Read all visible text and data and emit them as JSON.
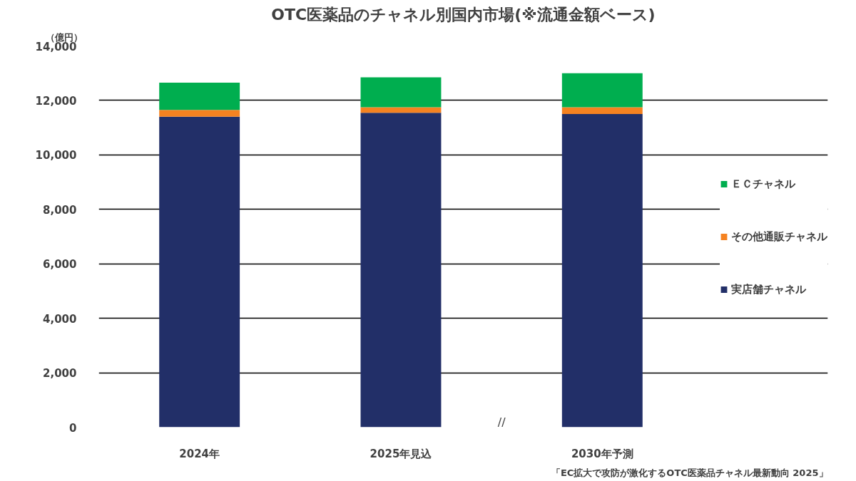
{
  "chart_data": {
    "type": "bar",
    "stacked": true,
    "title": "OTC医薬品のチャネル別国内市場(※流通金額ベース)",
    "ylabel": "（億円）",
    "categories": [
      "2024年",
      "2025年見込",
      "2030年予測"
    ],
    "series": [
      {
        "name": "実店舗チャネル",
        "color": "#222f68",
        "values": [
          11400,
          11550,
          11500
        ]
      },
      {
        "name": "その他通販チャネル",
        "color": "#f58220",
        "values": [
          250,
          200,
          250
        ]
      },
      {
        "name": "ＥＣチャネル",
        "color": "#00ae4f",
        "values": [
          1000,
          1100,
          1250
        ]
      }
    ],
    "ylim": [
      0,
      14000
    ],
    "yticks": [
      0,
      {
        "value": 2000,
        "label": "2,000"
      },
      {
        "value": 4000,
        "label": "4,000"
      },
      {
        "value": 6000,
        "label": "6,000"
      },
      {
        "value": 8000,
        "label": "8,000"
      },
      {
        "value": 10000,
        "label": "10,000"
      },
      {
        "value": 12000,
        "label": "12,000"
      },
      {
        "value": 14000,
        "label": "14,000"
      }
    ],
    "grid": "y",
    "legend": "right",
    "annotations": [
      "//",
      "「EC拡大で攻防が激化するOTC医薬品チャネル最新動向 2025」"
    ]
  }
}
